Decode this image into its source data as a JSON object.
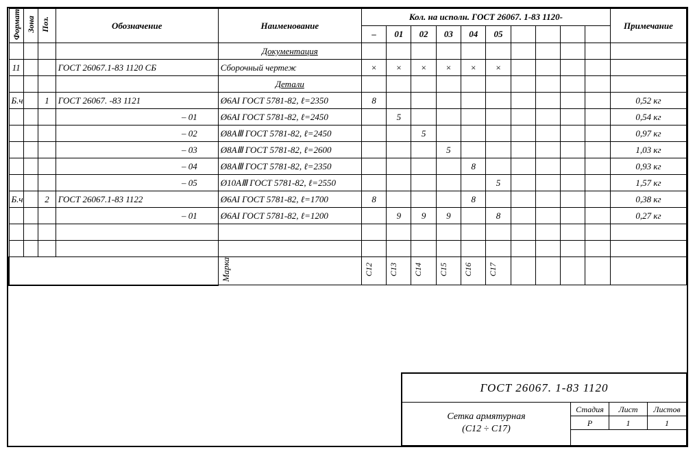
{
  "headers": {
    "format": "Формат",
    "zona": "Зона",
    "poz": "Поз.",
    "oboz": "Обозначение",
    "naim": "Наименование",
    "kol_title": "Кол. на исполн.  ГОСТ 26067. 1-83   1120-",
    "prim": "Примечание",
    "qcols": [
      "–",
      "01",
      "02",
      "03",
      "04",
      "05",
      "",
      "",
      "",
      ""
    ]
  },
  "section_doc": "Документация",
  "section_det": "Детали",
  "rows": [
    {
      "format": "11",
      "zona": "",
      "poz": "",
      "oboz": "ГОСТ 26067.1-83    1120 СБ",
      "naim": "Сборочный чертеж",
      "q": [
        "×",
        "×",
        "×",
        "×",
        "×",
        "×",
        "",
        "",
        "",
        ""
      ],
      "prim": ""
    },
    {
      "format": "Б.ч.",
      "zona": "",
      "poz": "1",
      "oboz": "ГОСТ 26067. -83    1121",
      "naim": "Ø6AI ГОСТ 5781-82, ℓ=2350",
      "q": [
        "8",
        "",
        "",
        "",
        "",
        "",
        "",
        "",
        "",
        ""
      ],
      "prim": "0,52 кг"
    },
    {
      "format": "",
      "zona": "",
      "poz": "",
      "oboz": "– 01",
      "naim": "Ø6AI ГОСТ 5781-82, ℓ=2450",
      "q": [
        "",
        "5",
        "",
        "",
        "",
        "",
        "",
        "",
        "",
        ""
      ],
      "prim": "0,54 кг"
    },
    {
      "format": "",
      "zona": "",
      "poz": "",
      "oboz": "– 02",
      "naim": "Ø8AⅢ ГОСТ 5781-82, ℓ=2450",
      "q": [
        "",
        "",
        "5",
        "",
        "",
        "",
        "",
        "",
        "",
        ""
      ],
      "prim": "0,97 кг"
    },
    {
      "format": "",
      "zona": "",
      "poz": "",
      "oboz": "– 03",
      "naim": "Ø8AⅢ ГОСТ 5781-82, ℓ=2600",
      "q": [
        "",
        "",
        "",
        "5",
        "",
        "",
        "",
        "",
        "",
        ""
      ],
      "prim": "1,03 кг"
    },
    {
      "format": "",
      "zona": "",
      "poz": "",
      "oboz": "– 04",
      "naim": "Ø8AⅢ ГОСТ 5781-82, ℓ=2350",
      "q": [
        "",
        "",
        "",
        "",
        "8",
        "",
        "",
        "",
        "",
        ""
      ],
      "prim": "0,93 кг"
    },
    {
      "format": "",
      "zona": "",
      "poz": "",
      "oboz": "– 05",
      "naim": "Ø10AⅢ ГОСТ 5781-82, ℓ=2550",
      "q": [
        "",
        "",
        "",
        "",
        "",
        "5",
        "",
        "",
        "",
        ""
      ],
      "prim": "1,57 кг"
    },
    {
      "format": "Б.ч.",
      "zona": "",
      "poz": "2",
      "oboz": "ГОСТ 26067.1-83   1122",
      "naim": "Ø6AI ГОСТ 5781-82, ℓ=1700",
      "q": [
        "8",
        "",
        "",
        "",
        "8",
        "",
        "",
        "",
        "",
        ""
      ],
      "prim": "0,38 кг"
    },
    {
      "format": "",
      "zona": "",
      "poz": "",
      "oboz": "– 01",
      "naim": "Ø6AI ГОСТ 5781-82, ℓ=1200",
      "q": [
        "",
        "9",
        "9",
        "9",
        "",
        "8",
        "",
        "",
        "",
        ""
      ],
      "prim": "0,27 кг"
    }
  ],
  "marka_label": "Марка",
  "marks": [
    "С12",
    "С13",
    "С14",
    "С15",
    "С16",
    "С17",
    "",
    "",
    "",
    ""
  ],
  "title_block": {
    "top": "ГОСТ  26067. 1-83    1120",
    "desc1": "Сетка армятурная",
    "desc2": "(С12 ÷ С17)",
    "stad_h": "Стадия",
    "list_h": "Лист",
    "listov_h": "Листов",
    "stad": "Р",
    "list": "1",
    "listov": "1"
  }
}
